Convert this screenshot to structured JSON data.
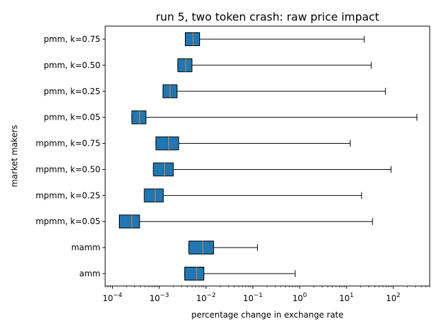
{
  "chart_data": {
    "type": "boxplot",
    "orientation": "horizontal",
    "title": "run 5, two token crash: raw price impact",
    "xlabel": "percentage change in exchange rate",
    "ylabel": "market makers",
    "xscale": "log",
    "xlim": [
      7e-05,
      600
    ],
    "x_ticks": [
      {
        "value": 0.0001,
        "base": "10",
        "exp": "−4"
      },
      {
        "value": 0.001,
        "base": "10",
        "exp": "−3"
      },
      {
        "value": 0.01,
        "base": "10",
        "exp": "−2"
      },
      {
        "value": 0.1,
        "base": "10",
        "exp": "−1"
      },
      {
        "value": 1,
        "base": "10",
        "exp": "0"
      },
      {
        "value": 10,
        "base": "10",
        "exp": "1"
      },
      {
        "value": 100,
        "base": "10",
        "exp": "2"
      }
    ],
    "colors": {
      "box": "#1f77b4",
      "median": "#ff7f0e",
      "line": "#000000"
    },
    "categories": [
      "amm",
      "mamm",
      "mpmm, k=0.05",
      "mpmm, k=0.25",
      "mpmm, k=0.50",
      "mpmm, k=0.75",
      "pmm, k=0.05",
      "pmm, k=0.25",
      "pmm, k=0.50",
      "pmm, k=0.75"
    ],
    "boxes": [
      {
        "label": "amm",
        "whislo": 0.0035,
        "q1": 0.0035,
        "median": 0.0063,
        "q3": 0.009,
        "whishi": 0.8
      },
      {
        "label": "mamm",
        "whislo": 0.0043,
        "q1": 0.0043,
        "median": 0.0085,
        "q3": 0.0145,
        "whishi": 0.125
      },
      {
        "label": "mpmm, k=0.05",
        "whislo": 0.00014,
        "q1": 0.00014,
        "median": 0.00026,
        "q3": 0.00038,
        "whishi": 36
      },
      {
        "label": "mpmm, k=0.25",
        "whislo": 0.00048,
        "q1": 0.00048,
        "median": 0.00082,
        "q3": 0.00122,
        "whishi": 21
      },
      {
        "label": "mpmm, k=0.50",
        "whislo": 0.00075,
        "q1": 0.00075,
        "median": 0.0013,
        "q3": 0.002,
        "whishi": 90
      },
      {
        "label": "mpmm, k=0.75",
        "whislo": 0.00085,
        "q1": 0.00085,
        "median": 0.0016,
        "q3": 0.0026,
        "whishi": 12
      },
      {
        "label": "pmm, k=0.05",
        "whislo": 0.00026,
        "q1": 0.00026,
        "median": 0.00038,
        "q3": 0.00052,
        "whishi": 320
      },
      {
        "label": "pmm, k=0.25",
        "whislo": 0.0012,
        "q1": 0.0012,
        "median": 0.0017,
        "q3": 0.0024,
        "whishi": 68
      },
      {
        "label": "pmm, k=0.50",
        "whislo": 0.0025,
        "q1": 0.0025,
        "median": 0.0037,
        "q3": 0.005,
        "whishi": 34
      },
      {
        "label": "pmm, k=0.75",
        "whislo": 0.0036,
        "q1": 0.0036,
        "median": 0.0053,
        "q3": 0.0073,
        "whishi": 24
      }
    ]
  }
}
